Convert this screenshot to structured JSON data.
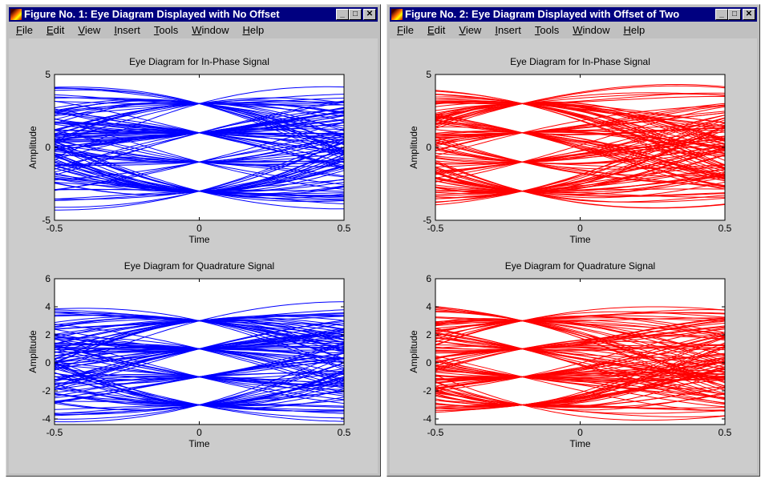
{
  "windows": [
    {
      "title": "Figure No. 1: Eye Diagram Displayed with No Offset",
      "color": "#0000ff"
    },
    {
      "title": "Figure No. 2: Eye Diagram Displayed with Offset of Two",
      "color": "#ff0000"
    }
  ],
  "menu": [
    "File",
    "Edit",
    "View",
    "Insert",
    "Tools",
    "Window",
    "Help"
  ],
  "window_buttons": {
    "minimize": "_",
    "maximize": "□",
    "close": "✕"
  },
  "chart_data": [
    {
      "type": "line",
      "figure": 1,
      "title": "Eye Diagram for In-Phase Signal",
      "xlabel": "Time",
      "ylabel": "Amplitude",
      "xlim": [
        -0.5,
        0.5
      ],
      "ylim": [
        -5,
        5
      ],
      "xticks": [
        "-0.5",
        "0",
        "0.5"
      ],
      "yticks": [
        "-5",
        "0",
        "5"
      ],
      "symbol_levels": [
        -3,
        -1,
        1,
        3
      ],
      "crossing_time": 0,
      "color": "#0000ff",
      "traces": 120
    },
    {
      "type": "line",
      "figure": 1,
      "title": "Eye Diagram for Quadrature Signal",
      "xlabel": "Time",
      "ylabel": "Amplitude",
      "xlim": [
        -0.5,
        0.5
      ],
      "ylim": [
        -4.4,
        6
      ],
      "xticks": [
        "-0.5",
        "0",
        "0.5"
      ],
      "yticks": [
        "-4",
        "-2",
        "0",
        "2",
        "4",
        "6"
      ],
      "symbol_levels": [
        -3,
        -1,
        1,
        3
      ],
      "crossing_time": 0,
      "color": "#0000ff",
      "traces": 120
    },
    {
      "type": "line",
      "figure": 2,
      "title": "Eye Diagram for In-Phase Signal",
      "xlabel": "Time",
      "ylabel": "Amplitude",
      "xlim": [
        -0.5,
        0.5
      ],
      "ylim": [
        -5,
        5
      ],
      "xticks": [
        "-0.5",
        "0",
        "0.5"
      ],
      "yticks": [
        "-5",
        "0",
        "5"
      ],
      "symbol_levels": [
        -3,
        -1,
        1,
        3
      ],
      "crossing_time": -0.2,
      "color": "#ff0000",
      "traces": 120
    },
    {
      "type": "line",
      "figure": 2,
      "title": "Eye Diagram for Quadrature Signal",
      "xlabel": "Time",
      "ylabel": "Amplitude",
      "xlim": [
        -0.5,
        0.5
      ],
      "ylim": [
        -4.4,
        6
      ],
      "xticks": [
        "-0.5",
        "0",
        "0.5"
      ],
      "yticks": [
        "-4",
        "-2",
        "0",
        "2",
        "4",
        "6"
      ],
      "symbol_levels": [
        -3,
        -1,
        1,
        3
      ],
      "crossing_time": -0.2,
      "color": "#ff0000",
      "traces": 120
    }
  ]
}
